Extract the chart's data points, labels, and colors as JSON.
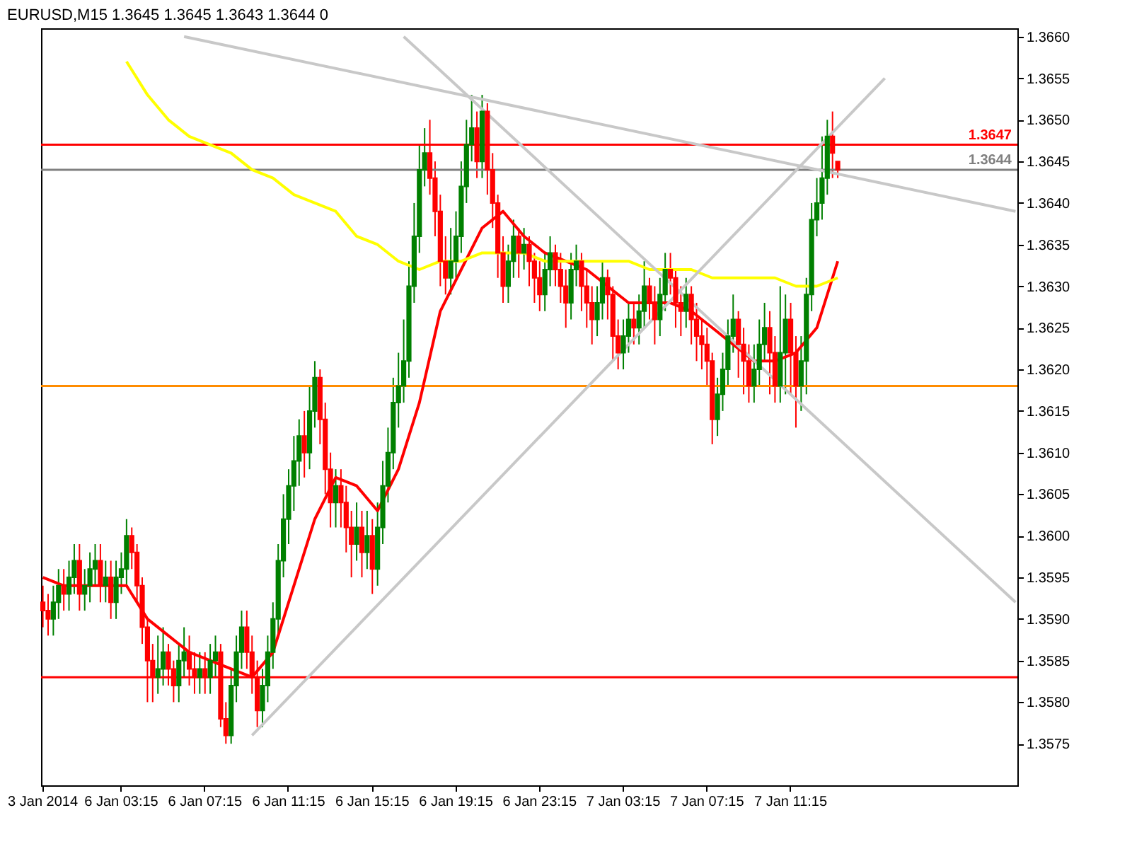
{
  "chart_data": {
    "type": "candlestick",
    "title": "EURUSD,M15  1.3645 1.3645 1.3643 1.3644  0",
    "categories": [
      "3 Jan 2014",
      null,
      null,
      null,
      null,
      null,
      null,
      null,
      null,
      null,
      null,
      null,
      null,
      null,
      null,
      "6 Jan 03:15",
      null,
      null,
      null,
      null,
      null,
      null,
      null,
      null,
      null,
      null,
      null,
      null,
      null,
      null,
      null,
      "6 Jan 07:15",
      null,
      null,
      null,
      null,
      null,
      null,
      null,
      null,
      null,
      null,
      null,
      null,
      null,
      null,
      null,
      "6 Jan 11:15",
      null,
      null,
      null,
      null,
      null,
      null,
      null,
      null,
      null,
      null,
      null,
      null,
      null,
      null,
      null,
      "6 Jan 15:15",
      null,
      null,
      null,
      null,
      null,
      null,
      null,
      null,
      null,
      null,
      null,
      null,
      null,
      null,
      null,
      "6 Jan 19:15",
      null,
      null,
      null,
      null,
      null,
      null,
      null,
      null,
      null,
      null,
      null,
      null,
      null,
      null,
      null,
      "6 Jan 23:15",
      null,
      null,
      null,
      null,
      null,
      null,
      null,
      null,
      null,
      null,
      null,
      null,
      null,
      null,
      null,
      "7 Jan 03:15",
      null,
      null,
      null,
      null,
      null,
      null,
      null,
      null,
      null,
      null,
      null,
      null,
      null,
      null,
      null,
      "7 Jan 07:15",
      null,
      null,
      null,
      null,
      null,
      null,
      null,
      null,
      null,
      null,
      null,
      null,
      null,
      null,
      null,
      "7 Jan 11:15",
      null,
      null,
      null,
      null,
      null,
      null,
      null,
      null,
      null,
      null,
      null,
      null,
      null,
      null,
      null,
      null,
      null,
      null,
      null,
      null,
      null,
      null,
      null,
      null,
      null,
      null,
      null,
      null,
      null,
      null,
      null,
      null,
      null,
      null,
      null,
      null,
      null,
      null,
      null,
      null,
      null,
      null,
      null
    ],
    "ohlc": [
      [
        1.3592,
        1.3594,
        1.3589,
        1.3591
      ],
      [
        1.3591,
        1.3593,
        1.3588,
        1.359
      ],
      [
        1.359,
        1.3594,
        1.3588,
        1.3592
      ],
      [
        1.3592,
        1.3596,
        1.359,
        1.3594
      ],
      [
        1.3594,
        1.3596,
        1.3591,
        1.3593
      ],
      [
        1.3593,
        1.3597,
        1.3591,
        1.3595
      ],
      [
        1.3595,
        1.3599,
        1.3593,
        1.3597
      ],
      [
        1.3597,
        1.3599,
        1.3591,
        1.3593
      ],
      [
        1.3593,
        1.3596,
        1.3591,
        1.3594
      ],
      [
        1.3594,
        1.3598,
        1.3592,
        1.3596
      ],
      [
        1.3596,
        1.3599,
        1.3594,
        1.3597
      ],
      [
        1.3597,
        1.3599,
        1.3592,
        1.3594
      ],
      [
        1.3594,
        1.3597,
        1.3592,
        1.3595
      ],
      [
        1.3595,
        1.3597,
        1.359,
        1.3592
      ],
      [
        1.3592,
        1.3597,
        1.359,
        1.3595
      ],
      [
        1.3595,
        1.3598,
        1.3593,
        1.3596
      ],
      [
        1.3596,
        1.3602,
        1.3594,
        1.36
      ],
      [
        1.36,
        1.3601,
        1.3596,
        1.3598
      ],
      [
        1.3598,
        1.3599,
        1.3592,
        1.3594
      ],
      [
        1.3594,
        1.3595,
        1.3587,
        1.3589
      ],
      [
        1.3589,
        1.359,
        1.358,
        1.3585
      ],
      [
        1.3585,
        1.3587,
        1.358,
        1.3583
      ],
      [
        1.3583,
        1.3588,
        1.3581,
        1.3584
      ],
      [
        1.3584,
        1.3589,
        1.3582,
        1.3586
      ],
      [
        1.3586,
        1.3587,
        1.3582,
        1.3584
      ],
      [
        1.3584,
        1.3585,
        1.358,
        1.3582
      ],
      [
        1.3582,
        1.3587,
        1.358,
        1.3585
      ],
      [
        1.3585,
        1.3589,
        1.3583,
        1.3586
      ],
      [
        1.3586,
        1.3588,
        1.3582,
        1.3584
      ],
      [
        1.3584,
        1.3586,
        1.3581,
        1.3583
      ],
      [
        1.3583,
        1.3586,
        1.3581,
        1.3584
      ],
      [
        1.3584,
        1.3586,
        1.3581,
        1.3583
      ],
      [
        1.3583,
        1.3587,
        1.3581,
        1.3585
      ],
      [
        1.3585,
        1.3588,
        1.3583,
        1.3586
      ],
      [
        1.3586,
        1.3587,
        1.3577,
        1.3578
      ],
      [
        1.3578,
        1.358,
        1.3575,
        1.3576
      ],
      [
        1.3576,
        1.3584,
        1.3575,
        1.3582
      ],
      [
        1.3582,
        1.3588,
        1.358,
        1.3586
      ],
      [
        1.3586,
        1.3591,
        1.3584,
        1.3589
      ],
      [
        1.3589,
        1.3591,
        1.3584,
        1.3586
      ],
      [
        1.3586,
        1.3588,
        1.3581,
        1.3583
      ],
      [
        1.3583,
        1.3585,
        1.3577,
        1.3579
      ],
      [
        1.3579,
        1.3584,
        1.3577,
        1.3582
      ],
      [
        1.3582,
        1.3588,
        1.358,
        1.3586
      ],
      [
        1.3586,
        1.3592,
        1.3584,
        1.359
      ],
      [
        1.359,
        1.3599,
        1.3588,
        1.3597
      ],
      [
        1.3597,
        1.3605,
        1.3595,
        1.3602
      ],
      [
        1.3602,
        1.3608,
        1.3599,
        1.3606
      ],
      [
        1.3606,
        1.3612,
        1.3603,
        1.3609
      ],
      [
        1.3609,
        1.3614,
        1.3606,
        1.3612
      ],
      [
        1.3612,
        1.3615,
        1.3607,
        1.361
      ],
      [
        1.361,
        1.3618,
        1.3608,
        1.3615
      ],
      [
        1.3615,
        1.3621,
        1.3613,
        1.3619
      ],
      [
        1.3619,
        1.362,
        1.3611,
        1.3614
      ],
      [
        1.3614,
        1.3616,
        1.3605,
        1.3608
      ],
      [
        1.3608,
        1.361,
        1.3601,
        1.3604
      ],
      [
        1.3604,
        1.3608,
        1.3601,
        1.3606
      ],
      [
        1.3606,
        1.3608,
        1.3601,
        1.3604
      ],
      [
        1.3604,
        1.3606,
        1.3598,
        1.3601
      ],
      [
        1.3601,
        1.3603,
        1.3595,
        1.3599
      ],
      [
        1.3599,
        1.3604,
        1.3597,
        1.3601
      ],
      [
        1.3601,
        1.3603,
        1.3595,
        1.3598
      ],
      [
        1.3598,
        1.3603,
        1.3596,
        1.36
      ],
      [
        1.36,
        1.3602,
        1.3593,
        1.3596
      ],
      [
        1.3596,
        1.3604,
        1.3594,
        1.3601
      ],
      [
        1.3601,
        1.3609,
        1.3599,
        1.3606
      ],
      [
        1.3606,
        1.3613,
        1.3604,
        1.361
      ],
      [
        1.361,
        1.3619,
        1.3608,
        1.3616
      ],
      [
        1.3616,
        1.3622,
        1.3613,
        1.3618
      ],
      [
        1.3618,
        1.3626,
        1.3616,
        1.3621
      ],
      [
        1.3621,
        1.3633,
        1.3619,
        1.363
      ],
      [
        1.363,
        1.364,
        1.3628,
        1.3636
      ],
      [
        1.3636,
        1.3647,
        1.3634,
        1.3644
      ],
      [
        1.3644,
        1.3649,
        1.3642,
        1.3646
      ],
      [
        1.3646,
        1.365,
        1.3641,
        1.3643
      ],
      [
        1.3643,
        1.3645,
        1.3636,
        1.3639
      ],
      [
        1.3639,
        1.3641,
        1.363,
        1.3633
      ],
      [
        1.3633,
        1.3636,
        1.3629,
        1.3631
      ],
      [
        1.3631,
        1.3637,
        1.3629,
        1.3633
      ],
      [
        1.3633,
        1.3639,
        1.3631,
        1.3636
      ],
      [
        1.3636,
        1.3645,
        1.3634,
        1.3642
      ],
      [
        1.3642,
        1.365,
        1.364,
        1.3647
      ],
      [
        1.3647,
        1.3653,
        1.3645,
        1.3649
      ],
      [
        1.3649,
        1.3651,
        1.3643,
        1.3645
      ],
      [
        1.3645,
        1.3653,
        1.3643,
        1.3651
      ],
      [
        1.3651,
        1.3652,
        1.3641,
        1.3644
      ],
      [
        1.3644,
        1.3646,
        1.3637,
        1.364
      ],
      [
        1.364,
        1.3641,
        1.3631,
        1.3634
      ],
      [
        1.3634,
        1.3636,
        1.3628,
        1.363
      ],
      [
        1.363,
        1.3635,
        1.3628,
        1.3633
      ],
      [
        1.3633,
        1.3638,
        1.3631,
        1.3636
      ],
      [
        1.3636,
        1.3637,
        1.3631,
        1.3634
      ],
      [
        1.3634,
        1.3637,
        1.3632,
        1.3635
      ],
      [
        1.3635,
        1.3636,
        1.363,
        1.3633
      ],
      [
        1.3633,
        1.3634,
        1.3628,
        1.3631
      ],
      [
        1.3631,
        1.3633,
        1.3627,
        1.3629
      ],
      [
        1.3629,
        1.3634,
        1.3627,
        1.3632
      ],
      [
        1.3632,
        1.3636,
        1.363,
        1.3634
      ],
      [
        1.3634,
        1.3635,
        1.363,
        1.3632
      ],
      [
        1.3632,
        1.3634,
        1.3628,
        1.363
      ],
      [
        1.363,
        1.3632,
        1.3625,
        1.3628
      ],
      [
        1.3628,
        1.3634,
        1.3626,
        1.3632
      ],
      [
        1.3632,
        1.3635,
        1.363,
        1.3633
      ],
      [
        1.3633,
        1.3634,
        1.3627,
        1.363
      ],
      [
        1.363,
        1.3632,
        1.3625,
        1.3628
      ],
      [
        1.3628,
        1.363,
        1.3623,
        1.3626
      ],
      [
        1.3626,
        1.363,
        1.3624,
        1.3628
      ],
      [
        1.3628,
        1.3633,
        1.3626,
        1.3631
      ],
      [
        1.3631,
        1.3632,
        1.3626,
        1.3629
      ],
      [
        1.3629,
        1.363,
        1.3621,
        1.3624
      ],
      [
        1.3624,
        1.3626,
        1.362,
        1.3622
      ],
      [
        1.3622,
        1.3626,
        1.362,
        1.3624
      ],
      [
        1.3624,
        1.3628,
        1.3622,
        1.3626
      ],
      [
        1.3626,
        1.3628,
        1.3623,
        1.3625
      ],
      [
        1.3625,
        1.3629,
        1.3623,
        1.3627
      ],
      [
        1.3627,
        1.3633,
        1.3625,
        1.363
      ],
      [
        1.363,
        1.3631,
        1.3626,
        1.3628
      ],
      [
        1.3628,
        1.363,
        1.3623,
        1.3626
      ],
      [
        1.3626,
        1.3631,
        1.3624,
        1.3629
      ],
      [
        1.3629,
        1.3634,
        1.3627,
        1.3632
      ],
      [
        1.3632,
        1.3634,
        1.3629,
        1.3631
      ],
      [
        1.3631,
        1.3632,
        1.3625,
        1.3628
      ],
      [
        1.3628,
        1.363,
        1.3624,
        1.3627
      ],
      [
        1.3627,
        1.3631,
        1.3625,
        1.3629
      ],
      [
        1.3629,
        1.363,
        1.3623,
        1.3626
      ],
      [
        1.3626,
        1.3628,
        1.3621,
        1.3624
      ],
      [
        1.3624,
        1.3626,
        1.362,
        1.3623
      ],
      [
        1.3623,
        1.3625,
        1.3618,
        1.3621
      ],
      [
        1.3621,
        1.3622,
        1.3611,
        1.3614
      ],
      [
        1.3614,
        1.3619,
        1.3612,
        1.3617
      ],
      [
        1.3617,
        1.3622,
        1.3615,
        1.362
      ],
      [
        1.362,
        1.3626,
        1.3618,
        1.3624
      ],
      [
        1.3624,
        1.3629,
        1.3622,
        1.3626
      ],
      [
        1.3626,
        1.3627,
        1.3619,
        1.3623
      ],
      [
        1.3623,
        1.3625,
        1.3617,
        1.3621
      ],
      [
        1.3621,
        1.3623,
        1.3616,
        1.3618
      ],
      [
        1.3618,
        1.3623,
        1.3616,
        1.362
      ],
      [
        1.362,
        1.3626,
        1.3618,
        1.3623
      ],
      [
        1.3623,
        1.3628,
        1.3621,
        1.3625
      ],
      [
        1.3625,
        1.3627,
        1.3617,
        1.3622
      ],
      [
        1.3622,
        1.3624,
        1.3616,
        1.3618
      ],
      [
        1.3618,
        1.363,
        1.3616,
        1.3622
      ],
      [
        1.3622,
        1.3629,
        1.3617,
        1.3626
      ],
      [
        1.3626,
        1.3628,
        1.3617,
        1.3622
      ],
      [
        1.3622,
        1.3624,
        1.3613,
        1.3618
      ],
      [
        1.3618,
        1.3624,
        1.3615,
        1.3621
      ],
      [
        1.3621,
        1.3631,
        1.3617,
        1.3629
      ],
      [
        1.3629,
        1.364,
        1.3627,
        1.3638
      ],
      [
        1.3638,
        1.3643,
        1.3636,
        1.364
      ],
      [
        1.364,
        1.3648,
        1.3638,
        1.3643
      ],
      [
        1.3643,
        1.365,
        1.3641,
        1.3648
      ],
      [
        1.3648,
        1.3651,
        1.3643,
        1.3646
      ],
      [
        1.3645,
        1.3645,
        1.3643,
        1.3644
      ],
      null,
      null,
      null,
      null,
      null,
      null,
      null,
      null,
      null,
      null,
      null,
      null,
      null,
      null,
      null,
      null,
      null,
      null,
      null,
      null,
      null,
      null,
      null,
      null,
      null,
      null,
      null,
      null,
      null,
      null,
      null,
      null,
      null,
      null
    ],
    "series": [
      {
        "type": "line",
        "color": "#ff0000",
        "values": [
          1.3595,
          null,
          null,
          null,
          1.3594,
          null,
          null,
          null,
          1.3594,
          null,
          null,
          null,
          1.3594,
          null,
          null,
          null,
          1.3594,
          null,
          null,
          null,
          1.359,
          null,
          null,
          null,
          1.3588,
          null,
          null,
          null,
          1.3586,
          null,
          null,
          null,
          1.3585,
          null,
          null,
          null,
          1.3584,
          null,
          null,
          null,
          1.3583,
          null,
          null,
          null,
          1.3586,
          null,
          null,
          null,
          1.3594,
          null,
          null,
          null,
          1.3602,
          null,
          null,
          null,
          1.3607,
          null,
          null,
          null,
          1.3606,
          null,
          null,
          null,
          1.3603,
          null,
          null,
          null,
          1.3608,
          null,
          null,
          null,
          1.3616,
          null,
          null,
          null,
          1.3627,
          null,
          null,
          null,
          1.3632,
          null,
          null,
          null,
          1.3637,
          null,
          null,
          null,
          1.3639,
          null,
          null,
          null,
          1.3636,
          null,
          null,
          null,
          1.3634,
          null,
          null,
          null,
          1.3633,
          null,
          null,
          null,
          1.3632,
          null,
          null,
          null,
          1.363,
          null,
          null,
          null,
          1.3628,
          null,
          null,
          null,
          1.3628,
          null,
          null,
          null,
          1.3628,
          null,
          null,
          null,
          1.3627,
          null,
          null,
          null,
          1.3625,
          null,
          null,
          null,
          1.3623,
          null,
          null,
          null,
          1.3621,
          null,
          null,
          null,
          1.3621,
          null,
          null,
          null,
          1.3622,
          null,
          null,
          null,
          1.3625,
          null,
          null,
          null,
          1.3633,
          null,
          null,
          null,
          null,
          null,
          null,
          null,
          null,
          null,
          null,
          null,
          null,
          null,
          null,
          null,
          null,
          null,
          null,
          null,
          null,
          null,
          null,
          null,
          null,
          null,
          null,
          null,
          null,
          null,
          null,
          null,
          null,
          null,
          null
        ]
      },
      {
        "type": "line",
        "color": "#ffff00",
        "values": [
          null,
          null,
          null,
          null,
          null,
          null,
          null,
          null,
          null,
          null,
          null,
          null,
          null,
          null,
          null,
          null,
          1.3657,
          null,
          null,
          null,
          1.3653,
          null,
          null,
          null,
          1.365,
          null,
          null,
          null,
          1.3648,
          null,
          null,
          null,
          1.3647,
          null,
          null,
          null,
          1.3646,
          null,
          null,
          null,
          1.3644,
          null,
          null,
          null,
          1.3643,
          null,
          null,
          null,
          1.3641,
          null,
          null,
          null,
          1.364,
          null,
          null,
          null,
          1.3639,
          null,
          null,
          null,
          1.3636,
          null,
          null,
          null,
          1.3635,
          null,
          null,
          null,
          1.3633,
          null,
          null,
          null,
          1.3632,
          null,
          null,
          null,
          1.3633,
          null,
          null,
          null,
          1.3633,
          null,
          null,
          null,
          1.3634,
          null,
          null,
          null,
          1.3634,
          null,
          null,
          null,
          1.3634,
          null,
          null,
          null,
          1.3633,
          null,
          null,
          null,
          1.3633,
          null,
          null,
          null,
          1.3633,
          null,
          null,
          null,
          1.3633,
          null,
          null,
          null,
          1.3633,
          null,
          null,
          null,
          1.3632,
          null,
          null,
          null,
          1.3632,
          null,
          null,
          null,
          1.3632,
          null,
          null,
          null,
          1.3631,
          null,
          null,
          null,
          1.3631,
          null,
          null,
          null,
          1.3631,
          null,
          null,
          null,
          1.3631,
          null,
          null,
          null,
          1.363,
          null,
          null,
          null,
          1.363,
          null,
          null,
          null,
          1.3631,
          null,
          null,
          null,
          null,
          null,
          null,
          null,
          null,
          null,
          null,
          null,
          null,
          null,
          null,
          null,
          null,
          null,
          null,
          null,
          null,
          null,
          null,
          null,
          null,
          null,
          null,
          null,
          null,
          null,
          null,
          null,
          null,
          null,
          null
        ]
      },
      {
        "type": "line",
        "color": "#c8c8c8",
        "values": [
          null,
          null,
          null,
          null,
          null,
          null,
          null,
          null,
          null,
          null,
          null,
          null,
          null,
          null,
          null,
          null,
          null,
          null,
          null,
          null,
          null,
          null,
          null,
          null,
          null,
          null,
          null,
          1.366,
          null,
          null,
          null,
          null,
          null,
          null,
          null,
          null,
          null,
          null,
          null,
          null,
          null,
          null,
          null,
          null,
          null,
          null,
          null,
          null,
          null,
          null,
          null,
          null,
          null,
          null,
          null,
          null,
          null,
          null,
          null,
          null,
          null,
          null,
          null,
          null,
          null,
          null,
          null,
          null,
          null,
          null,
          null,
          null,
          null,
          null,
          null,
          null,
          null,
          null,
          null,
          null,
          null,
          null,
          null,
          null,
          null,
          null,
          null,
          null,
          null,
          null,
          null,
          null,
          null,
          null,
          null,
          null,
          null,
          null,
          null,
          null,
          null,
          null,
          null,
          null,
          null,
          null,
          null,
          null,
          null,
          null,
          null,
          null,
          null,
          null,
          null,
          null,
          null,
          null,
          null,
          null,
          null,
          null,
          null,
          null,
          null,
          null,
          null,
          null,
          null,
          null,
          null,
          null,
          null,
          null,
          null,
          null,
          null,
          null,
          null,
          null,
          null,
          null,
          null,
          null,
          null,
          null,
          null,
          null,
          null,
          null,
          null,
          null,
          null,
          null,
          null,
          null,
          null,
          null,
          null,
          null,
          null,
          null,
          null,
          null,
          null,
          null,
          null,
          null,
          null,
          null,
          null,
          null,
          null,
          null,
          null,
          null,
          null,
          null,
          null,
          null,
          null,
          null,
          null,
          null,
          null,
          null,
          1.3639
        ]
      },
      {
        "type": "line",
        "color": "#c8c8c8",
        "values": [
          null,
          null,
          null,
          null,
          null,
          null,
          null,
          null,
          null,
          null,
          null,
          null,
          null,
          null,
          null,
          null,
          null,
          null,
          null,
          null,
          null,
          null,
          null,
          null,
          null,
          null,
          null,
          null,
          null,
          null,
          null,
          null,
          null,
          null,
          null,
          null,
          null,
          null,
          null,
          null,
          1.3576,
          null,
          null,
          null,
          null,
          null,
          null,
          null,
          null,
          null,
          null,
          null,
          null,
          null,
          null,
          null,
          null,
          null,
          null,
          null,
          null,
          null,
          null,
          null,
          null,
          null,
          null,
          null,
          null,
          null,
          null,
          null,
          null,
          null,
          null,
          null,
          null,
          null,
          null,
          null,
          null,
          null,
          null,
          null,
          null,
          null,
          null,
          null,
          null,
          null,
          null,
          null,
          null,
          null,
          null,
          null,
          null,
          null,
          null,
          null,
          null,
          null,
          null,
          null,
          null,
          null,
          null,
          null,
          null,
          null,
          null,
          null,
          null,
          null,
          null,
          null,
          null,
          null,
          null,
          null,
          null,
          null,
          null,
          null,
          null,
          null,
          null,
          null,
          null,
          null,
          null,
          null,
          null,
          null,
          null,
          null,
          null,
          null,
          null,
          null,
          null,
          null,
          null,
          null,
          null,
          null,
          null,
          null,
          null,
          null,
          null,
          null,
          null,
          null,
          null,
          null,
          null,
          null,
          null,
          null,
          null,
          1.3655,
          null,
          null,
          null,
          null,
          null,
          null,
          null,
          null,
          null,
          null,
          null,
          null,
          null,
          null,
          null,
          null,
          null,
          null,
          null,
          null,
          null,
          null,
          null,
          null,
          null
        ]
      },
      {
        "type": "line",
        "color": "#c8c8c8",
        "values": [
          null,
          null,
          null,
          null,
          null,
          null,
          null,
          null,
          null,
          null,
          null,
          null,
          null,
          null,
          null,
          null,
          null,
          null,
          null,
          null,
          null,
          null,
          null,
          null,
          null,
          null,
          null,
          null,
          null,
          null,
          null,
          null,
          null,
          null,
          null,
          null,
          null,
          null,
          null,
          null,
          null,
          null,
          null,
          null,
          null,
          null,
          null,
          null,
          null,
          null,
          null,
          null,
          null,
          null,
          null,
          null,
          null,
          null,
          null,
          null,
          null,
          null,
          null,
          null,
          null,
          null,
          null,
          null,
          null,
          1.366,
          null,
          null,
          null,
          null,
          null,
          null,
          null,
          null,
          null,
          null,
          null,
          null,
          null,
          null,
          null,
          null,
          null,
          null,
          null,
          null,
          null,
          null,
          null,
          null,
          null,
          null,
          null,
          null,
          null,
          null,
          null,
          null,
          null,
          null,
          null,
          null,
          null,
          null,
          null,
          null,
          null,
          null,
          null,
          null,
          null,
          null,
          null,
          null,
          null,
          null,
          null,
          null,
          null,
          null,
          null,
          null,
          null,
          null,
          null,
          null,
          null,
          null,
          null,
          null,
          null,
          null,
          null,
          null,
          null,
          null,
          null,
          null,
          null,
          null,
          null,
          null,
          null,
          null,
          null,
          null,
          null,
          null,
          null,
          null,
          null,
          null,
          null,
          null,
          null,
          null,
          null,
          null,
          null,
          null,
          null,
          null,
          null,
          null,
          null,
          null,
          null,
          null,
          null,
          null,
          null,
          null,
          null,
          null,
          null,
          null,
          null,
          null,
          null,
          null,
          null,
          null,
          1.3592
        ]
      }
    ],
    "ref_lines": [
      {
        "axis": "y",
        "value": 1.3647,
        "label": "1.3647",
        "color": "#ff0000"
      },
      {
        "axis": "y",
        "value": 1.3644,
        "label": "1.3644",
        "color": "#808080"
      },
      {
        "axis": "y",
        "value": 1.3618,
        "label": null,
        "color": "#ff8c00"
      },
      {
        "axis": "y",
        "value": 1.3583,
        "label": null,
        "color": "#ff0000"
      }
    ],
    "ylim": [
      1.357,
      1.3661
    ],
    "yticks": [
      {
        "value": 1.3575,
        "label": "1.3575"
      },
      {
        "value": 1.358,
        "label": "1.3580"
      },
      {
        "value": 1.3585,
        "label": "1.3585"
      },
      {
        "value": 1.359,
        "label": "1.3590"
      },
      {
        "value": 1.3595,
        "label": "1.3595"
      },
      {
        "value": 1.36,
        "label": "1.3600"
      },
      {
        "value": 1.3605,
        "label": "1.3605"
      },
      {
        "value": 1.361,
        "label": "1.3610"
      },
      {
        "value": 1.3615,
        "label": "1.3615"
      },
      {
        "value": 1.362,
        "label": "1.3620"
      },
      {
        "value": 1.3625,
        "label": "1.3625"
      },
      {
        "value": 1.363,
        "label": "1.3630"
      },
      {
        "value": 1.3635,
        "label": "1.3635"
      },
      {
        "value": 1.364,
        "label": "1.3640"
      },
      {
        "value": 1.3645,
        "label": "1.3645"
      },
      {
        "value": 1.365,
        "label": "1.3650"
      },
      {
        "value": 1.3655,
        "label": "1.3655"
      },
      {
        "value": 1.366,
        "label": "1.3660"
      }
    ],
    "grid": false
  }
}
